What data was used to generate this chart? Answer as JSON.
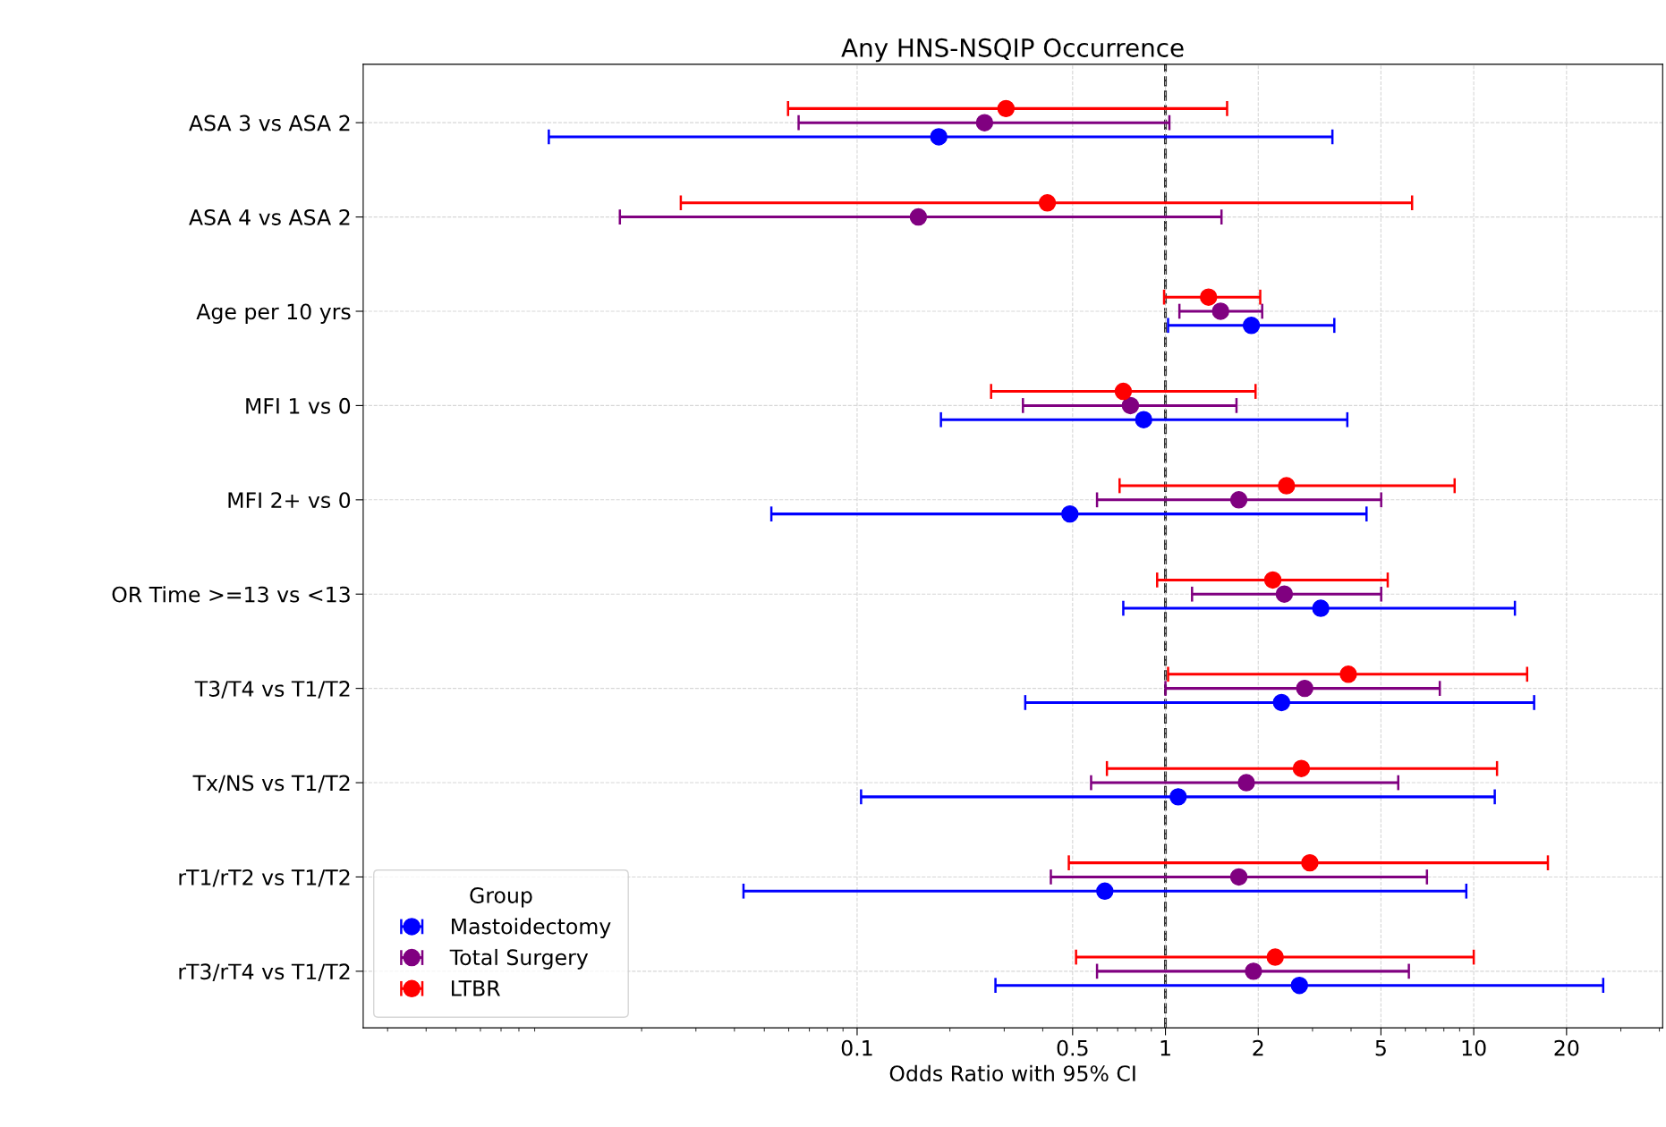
{
  "chart_data": {
    "type": "scatter",
    "title": "Any HNS-NSQIP Occurrence",
    "xlabel": "Odds Ratio with 95% CI",
    "categories": [
      "ASA 3 vs ASA 2",
      "ASA 4 vs ASA 2",
      "Age per 10 yrs",
      "MFI 1 vs 0",
      "MFI 2+ vs 0",
      "OR Time >=13 vs <13",
      "T3/T4 vs T1/T2",
      "Tx/NS vs T1/T2",
      "rT1/rT2 vs T1/T2",
      "rT3/rT4 vs T1/T2"
    ],
    "series": [
      {
        "name": "Mastoidectomy",
        "color": "#0000ff",
        "values": [
          0.184,
          null,
          1.9,
          0.85,
          0.49,
          3.19,
          2.38,
          1.1,
          0.636,
          2.72
        ],
        "errors": [
          [
            0.01,
            3.48
          ],
          null,
          [
            1.02,
            3.53
          ],
          [
            0.187,
            3.89
          ],
          [
            0.0527,
            4.49
          ],
          [
            0.73,
            13.6
          ],
          [
            0.351,
            15.7
          ],
          [
            0.103,
            11.7
          ],
          [
            0.0428,
            9.46
          ],
          [
            0.281,
            26.3
          ]
        ]
      },
      {
        "name": "Total Surgery",
        "color": "#800080",
        "values": [
          0.259,
          0.158,
          1.51,
          0.77,
          1.73,
          2.43,
          2.83,
          1.83,
          1.73,
          1.93
        ],
        "errors": [
          [
            0.0646,
            1.03
          ],
          [
            0.017,
            1.52
          ],
          [
            1.11,
            2.06
          ],
          [
            0.345,
            1.7
          ],
          [
            0.6,
            5.01
          ],
          [
            1.22,
            5.01
          ],
          [
            1.0,
            7.76
          ],
          [
            0.574,
            5.69
          ],
          [
            0.425,
            7.05
          ],
          [
            0.6,
            6.16
          ]
        ]
      },
      {
        "name": "LTBR",
        "color": "#ff0000",
        "values": [
          0.304,
          0.414,
          1.38,
          0.73,
          2.47,
          2.23,
          3.92,
          2.76,
          2.94,
          2.27
        ],
        "errors": [
          [
            0.0597,
            1.585
          ],
          [
            0.0268,
            6.31
          ],
          [
            0.99,
            2.03
          ],
          [
            0.272,
            1.96
          ],
          [
            0.71,
            8.67
          ],
          [
            0.94,
            5.26
          ],
          [
            1.02,
            14.9
          ],
          [
            0.646,
            11.9
          ],
          [
            0.486,
            17.4
          ],
          [
            0.513,
            10.0
          ]
        ]
      }
    ],
    "orientation": "horizontal",
    "log": "x",
    "xlim": [
      0.0025,
      41
    ],
    "xticks": [
      0.1,
      0.5,
      1,
      2,
      5,
      10,
      20
    ],
    "ref_lines": [
      {
        "axis": "x",
        "value": 1,
        "color": "#333333",
        "line_style": "dashed"
      }
    ],
    "grid": true,
    "legend": "bottom left",
    "legend_title": "Group",
    "marker": "circle"
  }
}
